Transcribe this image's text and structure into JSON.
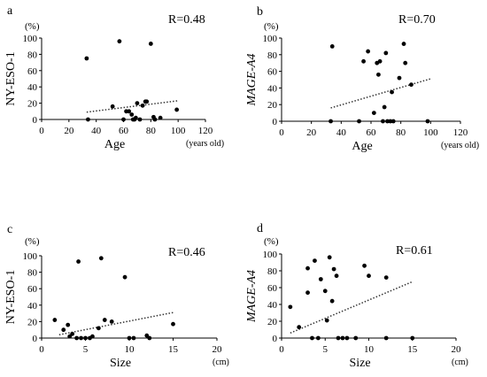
{
  "chart_data": [
    {
      "panel": "a",
      "type": "scatter",
      "ylabel": "NY-ESO-1",
      "yunit": "(%)",
      "xlabel": "Age",
      "xunit": "(years old)",
      "r_label": "R=0.48",
      "xlim": [
        0,
        120
      ],
      "ylim": [
        0,
        100
      ],
      "xticks": [
        0,
        20,
        40,
        60,
        80,
        100,
        120
      ],
      "yticks": [
        0,
        20,
        40,
        60,
        80,
        100
      ],
      "points": [
        [
          33,
          75
        ],
        [
          34,
          0
        ],
        [
          52,
          16
        ],
        [
          57,
          96
        ],
        [
          60,
          0
        ],
        [
          62,
          10
        ],
        [
          64,
          10
        ],
        [
          66,
          6
        ],
        [
          67,
          0
        ],
        [
          68,
          0
        ],
        [
          69,
          2
        ],
        [
          70,
          20
        ],
        [
          72,
          0
        ],
        [
          74,
          17
        ],
        [
          76,
          22
        ],
        [
          77,
          22
        ],
        [
          80,
          93
        ],
        [
          82,
          3
        ],
        [
          83,
          0
        ],
        [
          87,
          2
        ],
        [
          99,
          12
        ]
      ],
      "trend": [
        [
          33,
          9
        ],
        [
          100,
          23
        ]
      ]
    },
    {
      "panel": "b",
      "type": "scatter",
      "ylabel": "MAGE-A4",
      "yunit": "(%)",
      "xlabel": "Age",
      "xunit": "(years old)",
      "r_label": "R=0.70",
      "xlim": [
        0,
        120
      ],
      "ylim": [
        0,
        100
      ],
      "xticks": [
        0,
        20,
        40,
        60,
        80,
        100,
        120
      ],
      "yticks": [
        0,
        20,
        40,
        60,
        80,
        100
      ],
      "points": [
        [
          33,
          0
        ],
        [
          34,
          90
        ],
        [
          52,
          0
        ],
        [
          55,
          72
        ],
        [
          58,
          84
        ],
        [
          62,
          10
        ],
        [
          64,
          70
        ],
        [
          65,
          56
        ],
        [
          66,
          72
        ],
        [
          68,
          0
        ],
        [
          69,
          17
        ],
        [
          70,
          82
        ],
        [
          71,
          0
        ],
        [
          73,
          0
        ],
        [
          74,
          35
        ],
        [
          75,
          0
        ],
        [
          79,
          52
        ],
        [
          82,
          93
        ],
        [
          83,
          70
        ],
        [
          87,
          44
        ],
        [
          98,
          0
        ]
      ],
      "trend": [
        [
          33,
          16
        ],
        [
          100,
          51
        ]
      ]
    },
    {
      "panel": "c",
      "type": "scatter",
      "ylabel": "NY-ESO-1",
      "yunit": "(%)",
      "xlabel": "Size",
      "xunit": "(cm)",
      "r_label": "R=0.46",
      "xlim": [
        0,
        20
      ],
      "ylim": [
        0,
        100
      ],
      "xticks": [
        0,
        5,
        10,
        15,
        20
      ],
      "yticks": [
        0,
        20,
        40,
        60,
        80,
        100
      ],
      "points": [
        [
          1.5,
          22
        ],
        [
          2.5,
          10
        ],
        [
          3.0,
          16
        ],
        [
          3.2,
          2
        ],
        [
          3.5,
          5
        ],
        [
          4.0,
          0
        ],
        [
          4.2,
          93
        ],
        [
          4.5,
          0
        ],
        [
          5.0,
          0
        ],
        [
          5.5,
          0
        ],
        [
          5.8,
          2
        ],
        [
          6.5,
          12
        ],
        [
          6.8,
          97
        ],
        [
          7.2,
          22
        ],
        [
          8.0,
          20
        ],
        [
          9.5,
          74
        ],
        [
          10.0,
          0
        ],
        [
          10.5,
          0
        ],
        [
          12.0,
          3
        ],
        [
          12.3,
          0
        ],
        [
          15.0,
          17
        ]
      ],
      "trend": [
        [
          2,
          4
        ],
        [
          15,
          31
        ]
      ]
    },
    {
      "panel": "d",
      "type": "scatter",
      "ylabel": "MAGE-A4",
      "yunit": "(%)",
      "xlabel": "Size",
      "xunit": "(cm)",
      "r_label": "R=0.61",
      "xlim": [
        0,
        20
      ],
      "ylim": [
        0,
        100
      ],
      "xticks": [
        0,
        5,
        10,
        15,
        20
      ],
      "yticks": [
        0,
        20,
        40,
        60,
        80,
        100
      ],
      "points": [
        [
          1.0,
          37
        ],
        [
          2.0,
          13
        ],
        [
          3.0,
          54
        ],
        [
          3.0,
          83
        ],
        [
          3.5,
          0
        ],
        [
          3.8,
          92
        ],
        [
          4.2,
          0
        ],
        [
          4.5,
          70
        ],
        [
          5.0,
          56
        ],
        [
          5.2,
          21
        ],
        [
          5.5,
          96
        ],
        [
          5.8,
          44
        ],
        [
          6.0,
          82
        ],
        [
          6.3,
          74
        ],
        [
          6.5,
          0
        ],
        [
          7.0,
          0
        ],
        [
          7.5,
          0
        ],
        [
          8.5,
          0
        ],
        [
          9.5,
          86
        ],
        [
          10.0,
          74
        ],
        [
          12.0,
          72
        ],
        [
          12.0,
          0
        ],
        [
          15.0,
          0
        ]
      ],
      "trend": [
        [
          1,
          6
        ],
        [
          15,
          67
        ]
      ]
    }
  ]
}
